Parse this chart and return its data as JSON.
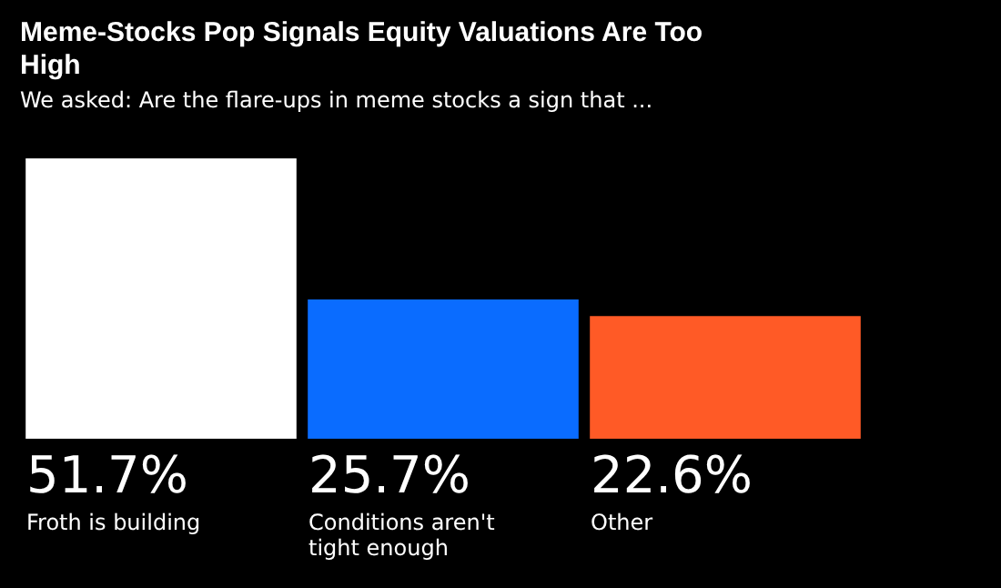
{
  "chart_data": {
    "type": "bar",
    "title": "Meme-Stocks Pop Signals Equity Valuations Are Too High",
    "subtitle": "We asked: Are the flare-ups in meme stocks a sign that ...",
    "categories": [
      "Froth is building",
      "Conditions aren't tight enough",
      "Other"
    ],
    "values": [
      51.7,
      25.7,
      22.6
    ],
    "colors": [
      "#ffffff",
      "#0a6cff",
      "#ff5a26"
    ],
    "value_labels": [
      "51.7%",
      "25.7%",
      "22.6%"
    ]
  }
}
